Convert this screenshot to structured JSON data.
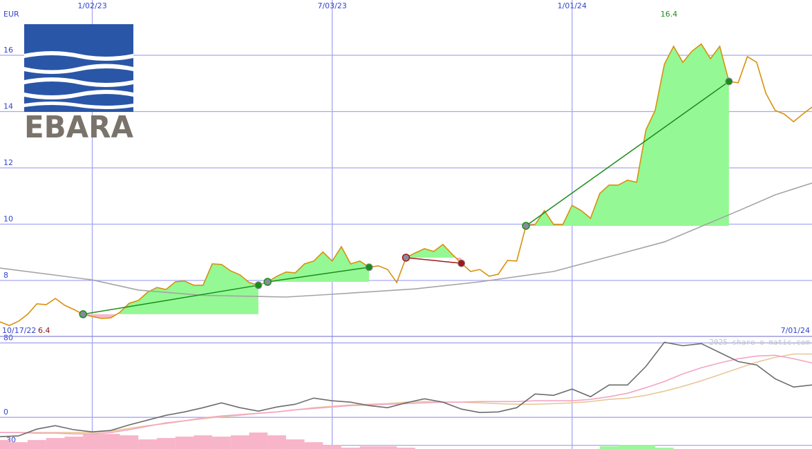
{
  "logo": {
    "text": "EBARA"
  },
  "chart_data": [
    {
      "type": "line",
      "unit_label": "EUR",
      "period_start": "10/17/22",
      "period_end": "7/01/24",
      "max_label": 16.4,
      "min_label": 6.4,
      "grid": true,
      "xlim": [
        "10/24/22",
        "7/01/24"
      ],
      "xticks": [
        "1/02/23",
        "7/03/23",
        "1/01/24"
      ],
      "ylim": [
        6,
        18
      ],
      "yticks": [
        8,
        10,
        12,
        14,
        16
      ],
      "x": [
        "10/24/22",
        "10/31/22",
        "11/07/22",
        "11/14/22",
        "11/21/22",
        "11/28/22",
        "12/05/22",
        "12/12/22",
        "12/19/22",
        "12/26/22",
        "1/02/23",
        "1/09/23",
        "1/16/23",
        "1/23/23",
        "1/30/23",
        "2/06/23",
        "2/13/23",
        "2/20/23",
        "2/27/23",
        "3/06/23",
        "3/13/23",
        "3/20/23",
        "3/27/23",
        "4/03/23",
        "4/10/23",
        "4/17/23",
        "4/24/23",
        "5/01/23",
        "5/08/23",
        "5/15/23",
        "5/22/23",
        "5/29/23",
        "6/05/23",
        "6/12/23",
        "6/19/23",
        "6/26/23",
        "7/03/23",
        "7/10/23",
        "7/17/23",
        "7/24/23",
        "7/31/23",
        "8/07/23",
        "8/14/23",
        "8/21/23",
        "8/28/23",
        "9/04/23",
        "9/11/23",
        "9/18/23",
        "9/25/23",
        "10/02/23",
        "10/09/23",
        "10/16/23",
        "10/23/23",
        "10/30/23",
        "11/06/23",
        "11/13/23",
        "11/20/23",
        "11/27/23",
        "12/04/23",
        "12/11/23",
        "12/18/23",
        "12/25/23",
        "1/01/24",
        "1/08/24",
        "1/15/24",
        "1/22/24",
        "1/29/24",
        "2/05/24",
        "2/12/24",
        "2/19/24",
        "2/26/24",
        "3/04/24",
        "3/11/24",
        "3/18/24",
        "3/25/24",
        "4/01/24",
        "4/08/24",
        "4/15/24",
        "4/22/24",
        "4/29/24",
        "5/06/24",
        "5/13/24",
        "5/20/24",
        "5/27/24",
        "6/03/24",
        "6/10/24",
        "6/17/24",
        "6/24/24",
        "7/01/24"
      ],
      "series": [
        {
          "color": "#d8900c",
          "values": [
            6.53,
            6.4,
            6.55,
            6.8,
            7.17,
            7.14,
            7.36,
            7.12,
            6.97,
            6.8,
            6.72,
            6.65,
            6.67,
            6.87,
            7.19,
            7.29,
            7.58,
            7.75,
            7.68,
            7.95,
            7.98,
            7.83,
            7.83,
            8.59,
            8.57,
            8.34,
            8.2,
            7.93,
            7.83,
            7.95,
            8.15,
            8.3,
            8.27,
            8.59,
            8.69,
            9.01,
            8.69,
            9.2,
            8.59,
            8.69,
            8.47,
            8.52,
            8.39,
            7.93,
            8.81,
            8.98,
            9.13,
            9.03,
            9.28,
            8.93,
            8.61,
            8.32,
            8.39,
            8.15,
            8.22,
            8.71,
            8.69,
            9.94,
            9.99,
            10.48,
            9.99,
            9.99,
            10.67,
            10.48,
            10.21,
            11.09,
            11.39,
            11.39,
            11.56,
            11.49,
            13.35,
            14.04,
            15.68,
            16.32,
            15.75,
            16.15,
            16.4,
            15.88,
            16.32,
            15.07,
            15.02,
            15.95,
            15.75,
            14.65,
            14.04,
            13.91,
            13.64,
            13.91,
            14.16
          ]
        },
        {
          "color": "#a4a4a4",
          "x": [
            "10/24/22",
            "1/02/23",
            "2/06/23",
            "3/27/23",
            "5/29/23",
            "7/03/23",
            "9/04/23",
            "10/23/23",
            "12/18/23",
            "2/05/24",
            "3/11/24",
            "5/06/24",
            "6/03/24",
            "7/01/24"
          ],
          "values": [
            8.44,
            8.02,
            7.66,
            7.47,
            7.41,
            7.51,
            7.7,
            7.95,
            8.32,
            8.93,
            9.37,
            10.47,
            11.04,
            11.46
          ]
        }
      ],
      "trades": [
        {
          "entry_date": "12/26/22",
          "entry_price": 6.8,
          "exit_date": "5/08/23",
          "exit_price": 7.83,
          "color": "#1a8c1a"
        },
        {
          "entry_date": "5/15/23",
          "entry_price": 7.95,
          "exit_date": "7/31/23",
          "exit_price": 8.47,
          "color": "#1a8c1a"
        },
        {
          "entry_date": "8/28/23",
          "entry_price": 8.81,
          "exit_date": "10/09/23",
          "exit_price": 8.61,
          "color": "#a01818"
        },
        {
          "entry_date": "11/27/23",
          "entry_price": 9.94,
          "exit_date": "4/29/24",
          "exit_price": 15.07,
          "color": "#1a8c1a"
        }
      ]
    },
    {
      "type": "line",
      "watermark": "2025 share-o-matic.com",
      "grid": true,
      "xlim": [
        "10/24/22",
        "7/01/24"
      ],
      "ylim": [
        -34,
        87
      ],
      "yticks": [
        -30,
        0,
        80
      ],
      "x": [
        "10/24/22",
        "11/07/22",
        "11/21/22",
        "12/05/22",
        "12/19/22",
        "1/02/23",
        "1/16/23",
        "1/30/23",
        "2/13/23",
        "2/27/23",
        "3/13/23",
        "3/27/23",
        "4/10/23",
        "4/24/23",
        "5/08/23",
        "5/22/23",
        "6/05/23",
        "6/19/23",
        "7/03/23",
        "7/17/23",
        "7/31/23",
        "8/14/23",
        "8/28/23",
        "9/11/23",
        "9/25/23",
        "10/09/23",
        "10/23/23",
        "11/06/23",
        "11/20/23",
        "12/04/23",
        "12/18/23",
        "1/01/24",
        "1/15/24",
        "1/29/24",
        "2/12/24",
        "2/26/24",
        "3/11/24",
        "3/25/24",
        "4/08/24",
        "4/22/24",
        "5/06/24",
        "5/20/24",
        "6/03/24",
        "6/17/24",
        "7/01/24"
      ],
      "series": [
        {
          "type": "bar",
          "color": "#f8b4c8",
          "values": [
            -24.4,
            -26.7,
            -24.4,
            -22.2,
            -20.7,
            -17.8,
            -17.8,
            -19.3,
            -23.7,
            -22.2,
            -20.7,
            -19.3,
            -20.7,
            -19.3,
            -16.3,
            -19.3,
            -23.7,
            -26.7,
            -29.6,
            -32.6,
            -31.1,
            -31.1,
            -32.6,
            null,
            null,
            null,
            null,
            null,
            null,
            null,
            null,
            null,
            null,
            null,
            null,
            null,
            null,
            null,
            null,
            null,
            null,
            null,
            null,
            null,
            null
          ]
        },
        {
          "type": "bar",
          "color": "#98f898",
          "values": [
            null,
            null,
            null,
            null,
            null,
            null,
            null,
            null,
            null,
            null,
            null,
            null,
            null,
            null,
            null,
            null,
            null,
            null,
            null,
            null,
            null,
            null,
            null,
            null,
            null,
            null,
            null,
            null,
            null,
            null,
            null,
            null,
            null,
            -31.1,
            -29.6,
            -29.6,
            -32.6,
            null,
            null,
            null,
            null,
            null,
            null,
            null,
            null
          ]
        },
        {
          "color": "#e8c898",
          "values": [
            -16.3,
            -16.3,
            -16.3,
            -16.3,
            -16.3,
            -16.3,
            -14.8,
            -11.9,
            -8.9,
            -6.7,
            -3.7,
            -1.5,
            0.7,
            2.2,
            4.4,
            5.9,
            8.1,
            10.4,
            11.9,
            13.3,
            14.1,
            14.8,
            16.3,
            17.0,
            16.3,
            16.3,
            15.6,
            14.8,
            14.1,
            14.1,
            14.8,
            15.6,
            17.0,
            19.3,
            20.7,
            23.7,
            28.1,
            33.3,
            39.3,
            45.9,
            52.6,
            59.3,
            64.4,
            68.1,
            68.1
          ]
        },
        {
          "color": "#f4a4c4",
          "values": [
            -16.3,
            -16.3,
            -17.0,
            -17.0,
            -17.8,
            -17.8,
            -16.3,
            -13.3,
            -9.6,
            -5.9,
            -3.7,
            -0.7,
            1.5,
            3.0,
            4.4,
            5.9,
            8.1,
            9.6,
            11.1,
            12.6,
            13.3,
            14.1,
            14.8,
            15.6,
            16.3,
            16.3,
            17.0,
            17.0,
            17.0,
            17.8,
            17.8,
            17.8,
            19.3,
            22.2,
            25.9,
            31.9,
            38.5,
            46.7,
            53.3,
            58.5,
            63.0,
            65.9,
            66.7,
            63.0,
            58.5
          ]
        },
        {
          "color": "#6c6c6c",
          "values": [
            -20.7,
            -20.0,
            -12.6,
            -8.9,
            -13.3,
            -15.6,
            -14.1,
            -8.1,
            -3.0,
            2.2,
            5.9,
            10.4,
            15.6,
            10.4,
            6.7,
            11.1,
            14.1,
            20.7,
            17.8,
            16.3,
            12.6,
            10.4,
            15.6,
            20.0,
            16.3,
            8.9,
            5.2,
            5.9,
            10.4,
            25.2,
            23.7,
            30.4,
            22.2,
            34.8,
            34.8,
            54.8,
            80.7,
            77.0,
            79.3,
            69.6,
            60.0,
            56.3,
            41.5,
            32.6,
            34.8
          ]
        }
      ]
    }
  ]
}
